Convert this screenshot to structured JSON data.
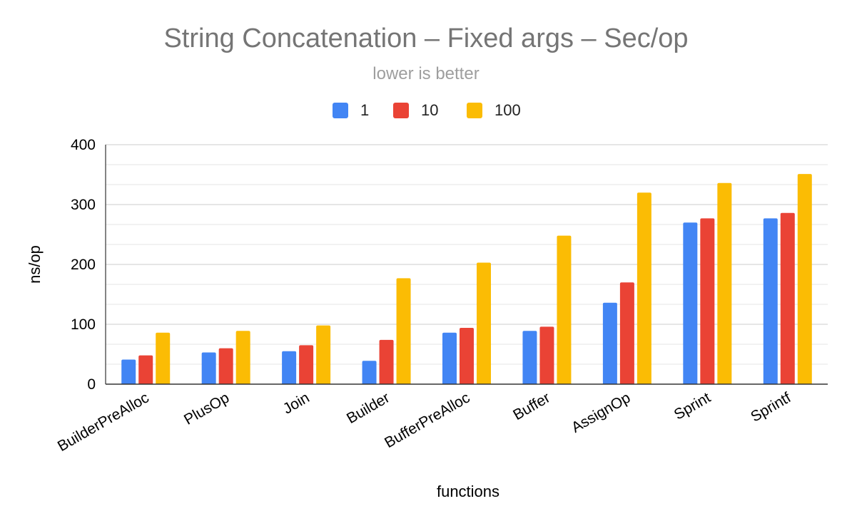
{
  "chart_data": {
    "type": "bar",
    "title": "String Concatenation – Fixed args – Sec/op",
    "subtitle": "lower is better",
    "xlabel": "functions",
    "ylabel": "ns/op",
    "ylim": [
      0,
      400
    ],
    "yticks": [
      0,
      100,
      200,
      300,
      400
    ],
    "minor_grid_step": 33.33,
    "grid": true,
    "legend_position": "top",
    "categories": [
      "BuilderPreAlloc",
      "PlusOp",
      "Join",
      "Builder",
      "BufferPreAlloc",
      "Buffer",
      "AssignOp",
      "Sprint",
      "Sprintf"
    ],
    "series": [
      {
        "name": "1",
        "color": "#4285F4",
        "values": [
          41,
          53,
          55,
          39,
          86,
          89,
          136,
          270,
          277
        ]
      },
      {
        "name": "10",
        "color": "#EA4335",
        "values": [
          48,
          60,
          65,
          74,
          94,
          96,
          170,
          277,
          286
        ]
      },
      {
        "name": "100",
        "color": "#FBBC04",
        "values": [
          86,
          89,
          98,
          177,
          203,
          248,
          320,
          336,
          351
        ]
      }
    ]
  }
}
